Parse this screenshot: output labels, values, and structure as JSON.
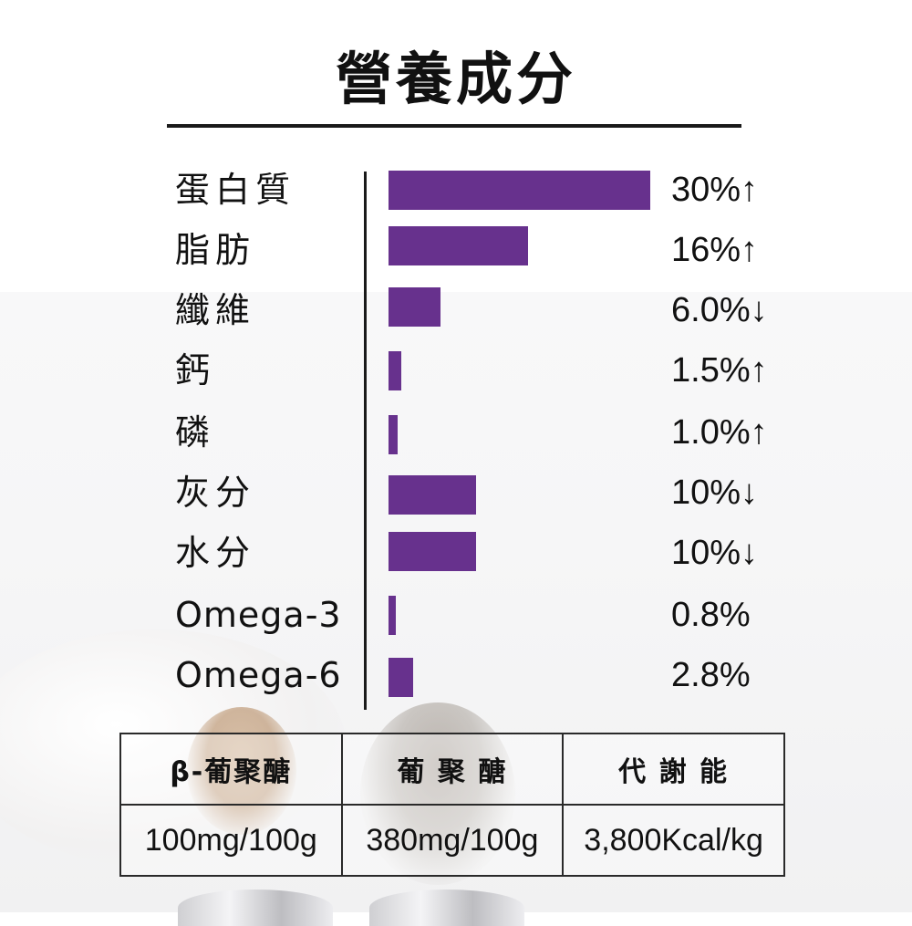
{
  "title": "營養成分",
  "colors": {
    "bar": "#67318d",
    "text": "#111111",
    "rule": "#1a1a1a"
  },
  "rows": [
    {
      "label": "蛋白質",
      "value": "30%↑"
    },
    {
      "label": "脂肪",
      "value": "16%↑"
    },
    {
      "label": "纖維",
      "value": "6.0%↓"
    },
    {
      "label": "鈣",
      "value": "1.5%↑"
    },
    {
      "label": "磷",
      "value": "1.0%↑"
    },
    {
      "label": "灰分",
      "value": "10%↓"
    },
    {
      "label": "水分",
      "value": "10%↓"
    },
    {
      "label": "Omega-3",
      "value": "0.8%"
    },
    {
      "label": "Omega-6",
      "value": "2.8%"
    }
  ],
  "table": {
    "headers": [
      "β-葡聚醣",
      "葡 聚 醣",
      "代 謝 能"
    ],
    "values": [
      "100mg/100g",
      "380mg/100g",
      "3,800Kcal/kg"
    ]
  },
  "chart_data": {
    "type": "bar",
    "orientation": "horizontal",
    "title": "營養成分",
    "categories": [
      "蛋白質",
      "脂肪",
      "纖維",
      "鈣",
      "磷",
      "灰分",
      "水分",
      "Omega-3",
      "Omega-6"
    ],
    "values": [
      30,
      16,
      6.0,
      1.5,
      1.0,
      10,
      10,
      0.8,
      2.8
    ],
    "value_labels": [
      "30%↑",
      "16%↑",
      "6.0%↓",
      "1.5%↑",
      "1.0%↑",
      "10%↓",
      "10%↓",
      "0.8%",
      "2.8%"
    ],
    "direction": [
      "min",
      "min",
      "max",
      "min",
      "min",
      "max",
      "max",
      "",
      ""
    ],
    "unit": "%",
    "xlabel": "",
    "ylabel": "",
    "grid": false,
    "legend": "none",
    "color": "#67318d"
  }
}
